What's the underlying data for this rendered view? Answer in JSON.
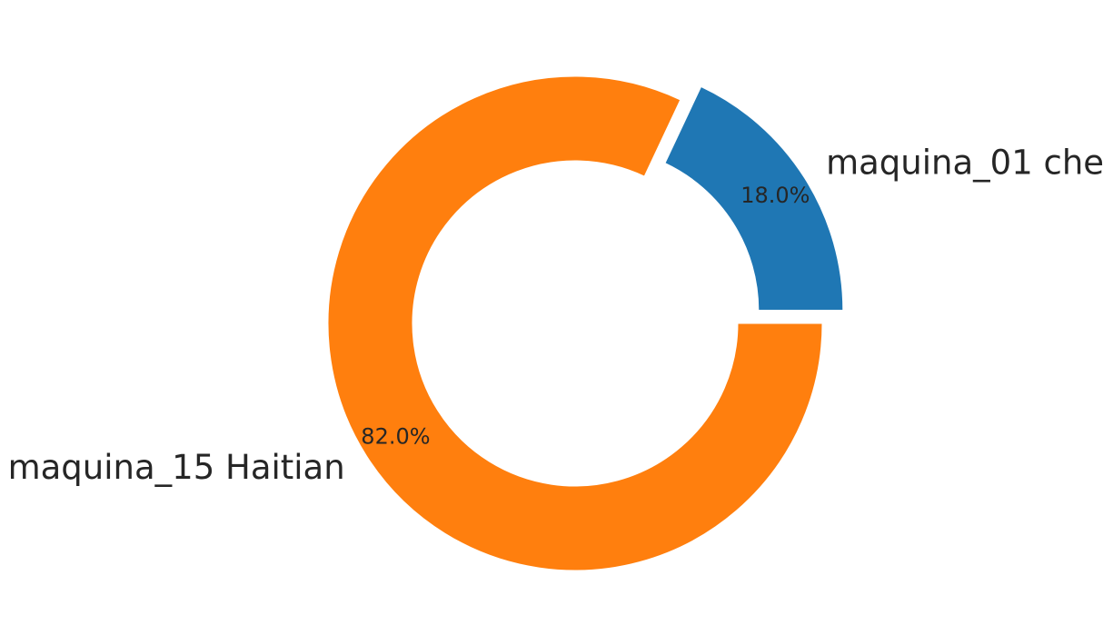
{
  "chart_data": {
    "type": "pie",
    "style": "donut",
    "categories": [
      "maquina_01 che",
      "maquina_15 Haitian"
    ],
    "values": [
      18.0,
      82.0
    ],
    "percent_labels": [
      "18.0%",
      "82.0%"
    ],
    "colors": [
      "#1f77b4",
      "#ff7f0e"
    ],
    "exploded": [
      true,
      false
    ]
  }
}
